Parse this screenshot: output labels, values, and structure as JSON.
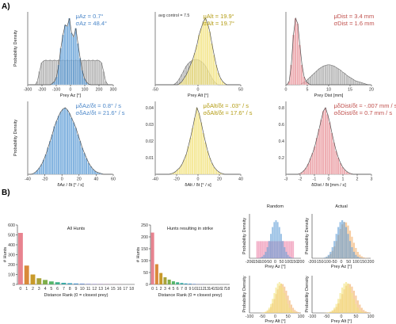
{
  "panel_labels": [
    "A)",
    "B)"
  ],
  "colors": {
    "blue": "#5b9bd5",
    "gray": "#a8a8a8",
    "yellow": "#f1e27a",
    "ydark": "#b39b12",
    "red": "#e8939a",
    "rdark": "#c0504d",
    "pink": "#ee8fb0",
    "orange": "#f4b87a",
    "purple": "#9b8fc9"
  },
  "chart_data": [
    {
      "id": "a1",
      "type": "bar",
      "xlabel": "Prey Az [°]",
      "ylabel": "Probability Density",
      "xlim": [
        -300,
        300
      ],
      "xticks": [
        "-300",
        "-200",
        "-100",
        "0",
        "100",
        "200",
        "300"
      ],
      "stat": {
        "line1": "μAz = 0.7°",
        "line2": "σAz = 48.4°",
        "color": "#4a86c8"
      },
      "series": [
        {
          "name": "",
          "color": "#5b9bd5",
          "hist": [
            0,
            0,
            0,
            0,
            0,
            0,
            0,
            0,
            0,
            0,
            0,
            0.02,
            0.05,
            0.12,
            0.3,
            0.55,
            0.75,
            0.9,
            0.88,
            1.0,
            0.78,
            0.72,
            0.85,
            0.62,
            0.4,
            0.22,
            0.1,
            0.04,
            0.01,
            0,
            0,
            0,
            0,
            0,
            0,
            0,
            0,
            0,
            0,
            0
          ]
        },
        {
          "name": "",
          "color": "#a8a8a8",
          "hist": [
            0,
            0,
            0,
            0,
            0.05,
            0.2,
            0.33,
            0.36,
            0.37,
            0.36,
            0.37,
            0.36,
            0.37,
            0.36,
            0.37,
            0.36,
            0.37,
            0.36,
            0.37,
            0.36,
            0.37,
            0.36,
            0.37,
            0.36,
            0.37,
            0.36,
            0.37,
            0.36,
            0.37,
            0.36,
            0.37,
            0.36,
            0.37,
            0.36,
            0.33,
            0.2,
            0.05,
            0,
            0,
            0
          ]
        }
      ]
    },
    {
      "id": "a2",
      "type": "bar",
      "xlabel": "Prey Alt [°]",
      "ylabel": "",
      "xlim": [
        -50,
        50
      ],
      "xticks": [
        "-50",
        "0",
        "50"
      ],
      "note": "avg control = 7.5",
      "stat": {
        "line1": "μAlt = 19.9°",
        "line2": "σAlt = 19.7°",
        "color": "#b39b12"
      },
      "series": [
        {
          "name": "",
          "color": "#f1e27a",
          "hist": [
            0,
            0,
            0,
            0,
            0,
            0,
            0,
            0,
            0,
            0,
            0,
            0.02,
            0.05,
            0.1,
            0.15,
            0.22,
            0.3,
            0.38,
            0.48,
            0.6,
            0.75,
            0.85,
            0.95,
            1.0,
            0.92,
            0.8,
            0.62,
            0.45,
            0.3,
            0.18,
            0.1,
            0.05,
            0.02,
            0,
            0,
            0,
            0,
            0,
            0,
            0
          ]
        },
        {
          "name": "",
          "color": "#a8a8a8",
          "hist": [
            0,
            0,
            0,
            0,
            0,
            0,
            0,
            0,
            0,
            0.02,
            0.05,
            0.1,
            0.16,
            0.22,
            0.28,
            0.32,
            0.35,
            0.37,
            0.38,
            0.38,
            0.37,
            0.35,
            0.32,
            0.28,
            0.22,
            0.16,
            0.1,
            0.05,
            0.02,
            0,
            0,
            0,
            0,
            0,
            0,
            0,
            0,
            0,
            0,
            0
          ]
        }
      ]
    },
    {
      "id": "a3",
      "type": "bar",
      "xlabel": "Prey Dist [mm]",
      "ylabel": "",
      "xlim": [
        0,
        20
      ],
      "xticks": [
        "0",
        "5",
        "10",
        "15",
        "20"
      ],
      "stat": {
        "line1": "μDist = 3.4 mm",
        "line2": "σDist = 1.6 mm",
        "color": "#c0504d"
      },
      "series": [
        {
          "name": "",
          "color": "#e8939a",
          "hist": [
            0,
            0.05,
            0.3,
            0.75,
            1.0,
            0.92,
            0.6,
            0.3,
            0.12,
            0.05,
            0.02,
            0,
            0,
            0,
            0,
            0,
            0,
            0,
            0,
            0,
            0,
            0,
            0,
            0,
            0,
            0,
            0,
            0,
            0,
            0,
            0,
            0,
            0,
            0,
            0,
            0,
            0,
            0,
            0,
            0
          ]
        },
        {
          "name": "",
          "color": "#a8a8a8",
          "hist": [
            0,
            0,
            0,
            0,
            0,
            0,
            0,
            0.02,
            0.04,
            0.06,
            0.09,
            0.12,
            0.15,
            0.18,
            0.21,
            0.24,
            0.26,
            0.28,
            0.29,
            0.3,
            0.3,
            0.29,
            0.28,
            0.26,
            0.24,
            0.22,
            0.19,
            0.17,
            0.14,
            0.12,
            0.1,
            0.08,
            0.06,
            0.05,
            0.04,
            0.03,
            0.02,
            0.01,
            0,
            0
          ]
        }
      ]
    },
    {
      "id": "a4",
      "type": "bar",
      "xlabel": "δAz / δt [° / s]",
      "ylabel": "Probability Density",
      "xlim": [
        -50,
        70
      ],
      "xticks": [
        "-40",
        "-20",
        "0",
        "20",
        "40",
        "60"
      ],
      "stat": {
        "line1": "μδAz/δt = 0.8° / s",
        "line2": "σδAz/δt = 21.6° / s",
        "color": "#4a86c8"
      },
      "series": [
        {
          "name": "",
          "color": "#5b9bd5",
          "hist": [
            0,
            0,
            0.01,
            0.03,
            0.06,
            0.1,
            0.15,
            0.22,
            0.3,
            0.4,
            0.5,
            0.6,
            0.72,
            0.8,
            0.88,
            0.94,
            0.98,
            1.0,
            0.97,
            0.92,
            0.85,
            0.78,
            0.7,
            0.6,
            0.5,
            0.4,
            0.32,
            0.24,
            0.17,
            0.12,
            0.08,
            0.05,
            0.03,
            0.02,
            0.01,
            0,
            0,
            0,
            0,
            0
          ]
        }
      ]
    },
    {
      "id": "a5",
      "type": "bar",
      "xlabel": "δAlt / δt [° / s]",
      "ylabel": "",
      "xlim": [
        -60,
        60
      ],
      "xticks": [
        "-40",
        "-20",
        "0",
        "20",
        "40"
      ],
      "yticks": [
        "0.01",
        "0.02",
        "0.03",
        "0.04"
      ],
      "stat": {
        "line1": "μδAlt/δt = .03° / s",
        "line2": "σδAlt/δt = 17.6° / s",
        "color": "#b39b12"
      },
      "series": [
        {
          "name": "",
          "color": "#f1e27a",
          "hist": [
            0,
            0,
            0,
            0,
            0,
            0,
            0,
            0.01,
            0.02,
            0.04,
            0.07,
            0.1,
            0.15,
            0.22,
            0.3,
            0.42,
            0.55,
            0.7,
            0.85,
            1.0,
            0.92,
            0.78,
            0.62,
            0.48,
            0.35,
            0.25,
            0.17,
            0.11,
            0.07,
            0.04,
            0.02,
            0.01,
            0,
            0,
            0,
            0,
            0,
            0,
            0,
            0
          ]
        }
      ]
    },
    {
      "id": "a6",
      "type": "bar",
      "xlabel": "δDist / δt [mm / s]",
      "ylabel": "",
      "xlim": [
        -3,
        3
      ],
      "xticks": [
        "-3",
        "-2",
        "-1",
        "0",
        "1",
        "2",
        "3"
      ],
      "yticks": [
        "0.2",
        "0.4",
        "0.6",
        "0.8"
      ],
      "stat": {
        "line1": "μδDist/δt = -.007 mm / s",
        "line2": "σδDist/δt = 0.7 mm / s",
        "color": "#c0504d"
      },
      "series": [
        {
          "name": "",
          "color": "#e8939a",
          "hist": [
            0,
            0,
            0,
            0,
            0,
            0,
            0.01,
            0.03,
            0.06,
            0.1,
            0.16,
            0.24,
            0.32,
            0.42,
            0.55,
            0.68,
            0.82,
            0.95,
            1.0,
            0.9,
            0.78,
            0.62,
            0.48,
            0.35,
            0.25,
            0.17,
            0.11,
            0.07,
            0.04,
            0.02,
            0.01,
            0,
            0,
            0,
            0,
            0,
            0,
            0,
            0,
            0
          ]
        }
      ]
    },
    {
      "id": "b1",
      "type": "bar",
      "title": "All Hunts",
      "xlabel": "Distance Rank (0 = closest prey)",
      "ylabel": "# Hunts",
      "ylim": [
        0,
        600
      ],
      "yticks": [
        "0",
        "100",
        "200",
        "300",
        "400",
        "500",
        "600"
      ],
      "categories": [
        "0",
        "1",
        "2",
        "3",
        "4",
        "5",
        "6",
        "7",
        "8",
        "9",
        "10",
        "11",
        "12",
        "13",
        "14",
        "15",
        "16",
        "17",
        "18"
      ],
      "values": [
        520,
        190,
        100,
        62,
        45,
        30,
        22,
        16,
        12,
        9,
        7,
        5,
        4,
        3,
        2,
        1,
        1,
        0,
        0
      ]
    },
    {
      "id": "b2",
      "type": "bar",
      "title": "Hunts resulting in strike",
      "xlabel": "Distance Rank (0 = closest prey)",
      "ylabel": "# Hunts",
      "ylim": [
        0,
        250
      ],
      "yticks": [
        "0",
        "50",
        "100",
        "150",
        "200",
        "250"
      ],
      "categories": [
        "0",
        "1",
        "2",
        "3",
        "4",
        "5",
        "6",
        "7",
        "8",
        "9",
        "10",
        "11",
        "12",
        "13",
        "14",
        "15",
        "16",
        "17",
        "18"
      ],
      "values": [
        218,
        85,
        48,
        30,
        20,
        13,
        9,
        6,
        4,
        3,
        2,
        1,
        1,
        0,
        0,
        0,
        0,
        0,
        0
      ]
    },
    {
      "id": "b3",
      "type": "bar",
      "title": "Random",
      "xlabel": "Prey Az [°]",
      "ylabel": "Probability Density",
      "xticks": [
        "-200",
        "-150",
        "-100",
        "-50",
        "0",
        "50",
        "100",
        "150",
        "200"
      ]
    },
    {
      "id": "b4",
      "type": "bar",
      "title": "Actual",
      "xlabel": "Prey Az [°]",
      "ylabel": "Probability Density",
      "xticks": [
        "-200",
        "-150",
        "-100",
        "-50",
        "0",
        "50",
        "100",
        "150",
        "200"
      ]
    },
    {
      "id": "b5",
      "type": "bar",
      "title": "",
      "xlabel": "Prey Alt [°]",
      "ylabel": "Probability Density",
      "xticks": [
        "-100",
        "-50",
        "0",
        "50",
        "100"
      ]
    },
    {
      "id": "b6",
      "type": "bar",
      "title": "",
      "xlabel": "Prey Alt [°]",
      "ylabel": "Probability Density",
      "xticks": [
        "-100",
        "-50",
        "0",
        "50",
        "100"
      ]
    }
  ]
}
